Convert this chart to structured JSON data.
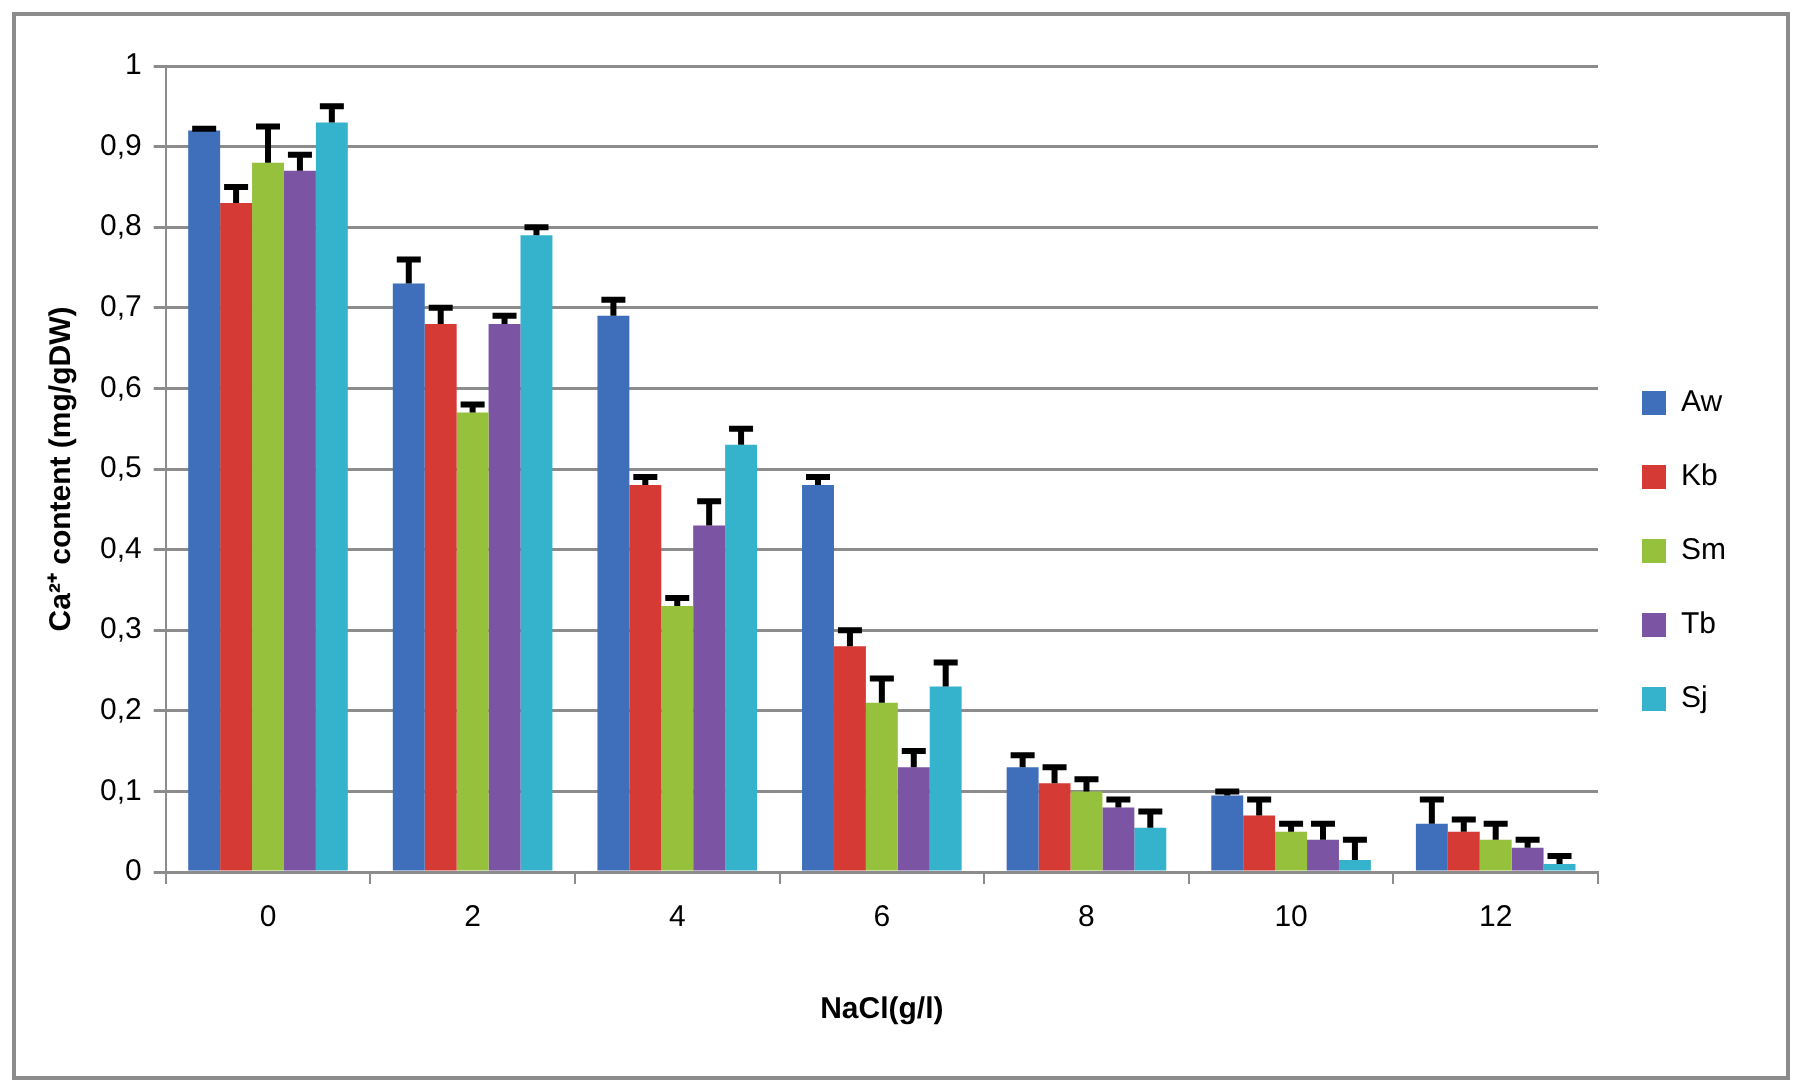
{
  "chart_data": {
    "type": "bar",
    "xlabel": "NaCl(g/l)",
    "ylabel": "Ca²⁺ content (mg/gDW)",
    "categories": [
      "0",
      "2",
      "4",
      "6",
      "8",
      "10",
      "12"
    ],
    "series": [
      {
        "name": "Aw",
        "color": "#3f6fba",
        "values": [
          0.92,
          0.73,
          0.69,
          0.48,
          0.13,
          0.095,
          0.06
        ],
        "errors": [
          [
            0.92,
            0.922
          ],
          [
            0.73,
            0.76
          ],
          [
            0.69,
            0.71
          ],
          [
            0.48,
            0.49
          ],
          [
            0.13,
            0.145
          ],
          [
            0.095,
            0.1
          ],
          [
            0.06,
            0.09
          ]
        ]
      },
      {
        "name": "Kb",
        "color": "#d63a35",
        "values": [
          0.83,
          0.68,
          0.48,
          0.28,
          0.11,
          0.07,
          0.05
        ],
        "errors": [
          [
            0.83,
            0.85
          ],
          [
            0.68,
            0.7
          ],
          [
            0.48,
            0.49
          ],
          [
            0.28,
            0.3
          ],
          [
            0.11,
            0.13
          ],
          [
            0.07,
            0.09
          ],
          [
            0.05,
            0.065
          ]
        ]
      },
      {
        "name": "Sm",
        "color": "#95c13d",
        "values": [
          0.88,
          0.57,
          0.33,
          0.21,
          0.1,
          0.05,
          0.04
        ],
        "errors": [
          [
            0.88,
            0.925
          ],
          [
            0.57,
            0.58
          ],
          [
            0.33,
            0.34
          ],
          [
            0.21,
            0.24
          ],
          [
            0.1,
            0.115
          ],
          [
            0.05,
            0.06
          ],
          [
            0.04,
            0.06
          ]
        ]
      },
      {
        "name": "Tb",
        "color": "#7b55a3",
        "values": [
          0.87,
          0.68,
          0.43,
          0.13,
          0.08,
          0.04,
          0.03
        ],
        "errors": [
          [
            0.87,
            0.89
          ],
          [
            0.68,
            0.69
          ],
          [
            0.43,
            0.46
          ],
          [
            0.13,
            0.15
          ],
          [
            0.08,
            0.09
          ],
          [
            0.04,
            0.06
          ],
          [
            0.03,
            0.04
          ]
        ]
      },
      {
        "name": "Sj",
        "color": "#36b3cc",
        "values": [
          0.93,
          0.79,
          0.53,
          0.23,
          0.055,
          0.015,
          0.01
        ],
        "errors": [
          [
            0.93,
            0.95
          ],
          [
            0.79,
            0.8
          ],
          [
            0.53,
            0.55
          ],
          [
            0.23,
            0.26
          ],
          [
            0.055,
            0.075
          ],
          [
            0.015,
            0.04
          ],
          [
            0.01,
            0.02
          ]
        ]
      }
    ],
    "ylim": [
      0,
      1
    ],
    "yticks": [
      0,
      {
        "value": 0.1,
        "label": "0,1"
      },
      {
        "value": 0.2,
        "label": "0,2"
      },
      {
        "value": 0.3,
        "label": "0,3"
      },
      {
        "value": 0.4,
        "label": "0,4"
      },
      {
        "value": 0.5,
        "label": "0,5"
      },
      {
        "value": 0.6,
        "label": "0,6"
      },
      {
        "value": 0.7,
        "label": "0,7"
      },
      {
        "value": 0.8,
        "label": "0,8"
      },
      {
        "value": 0.9,
        "label": "0,9"
      },
      1
    ],
    "grid": "y",
    "legend": "right"
  }
}
